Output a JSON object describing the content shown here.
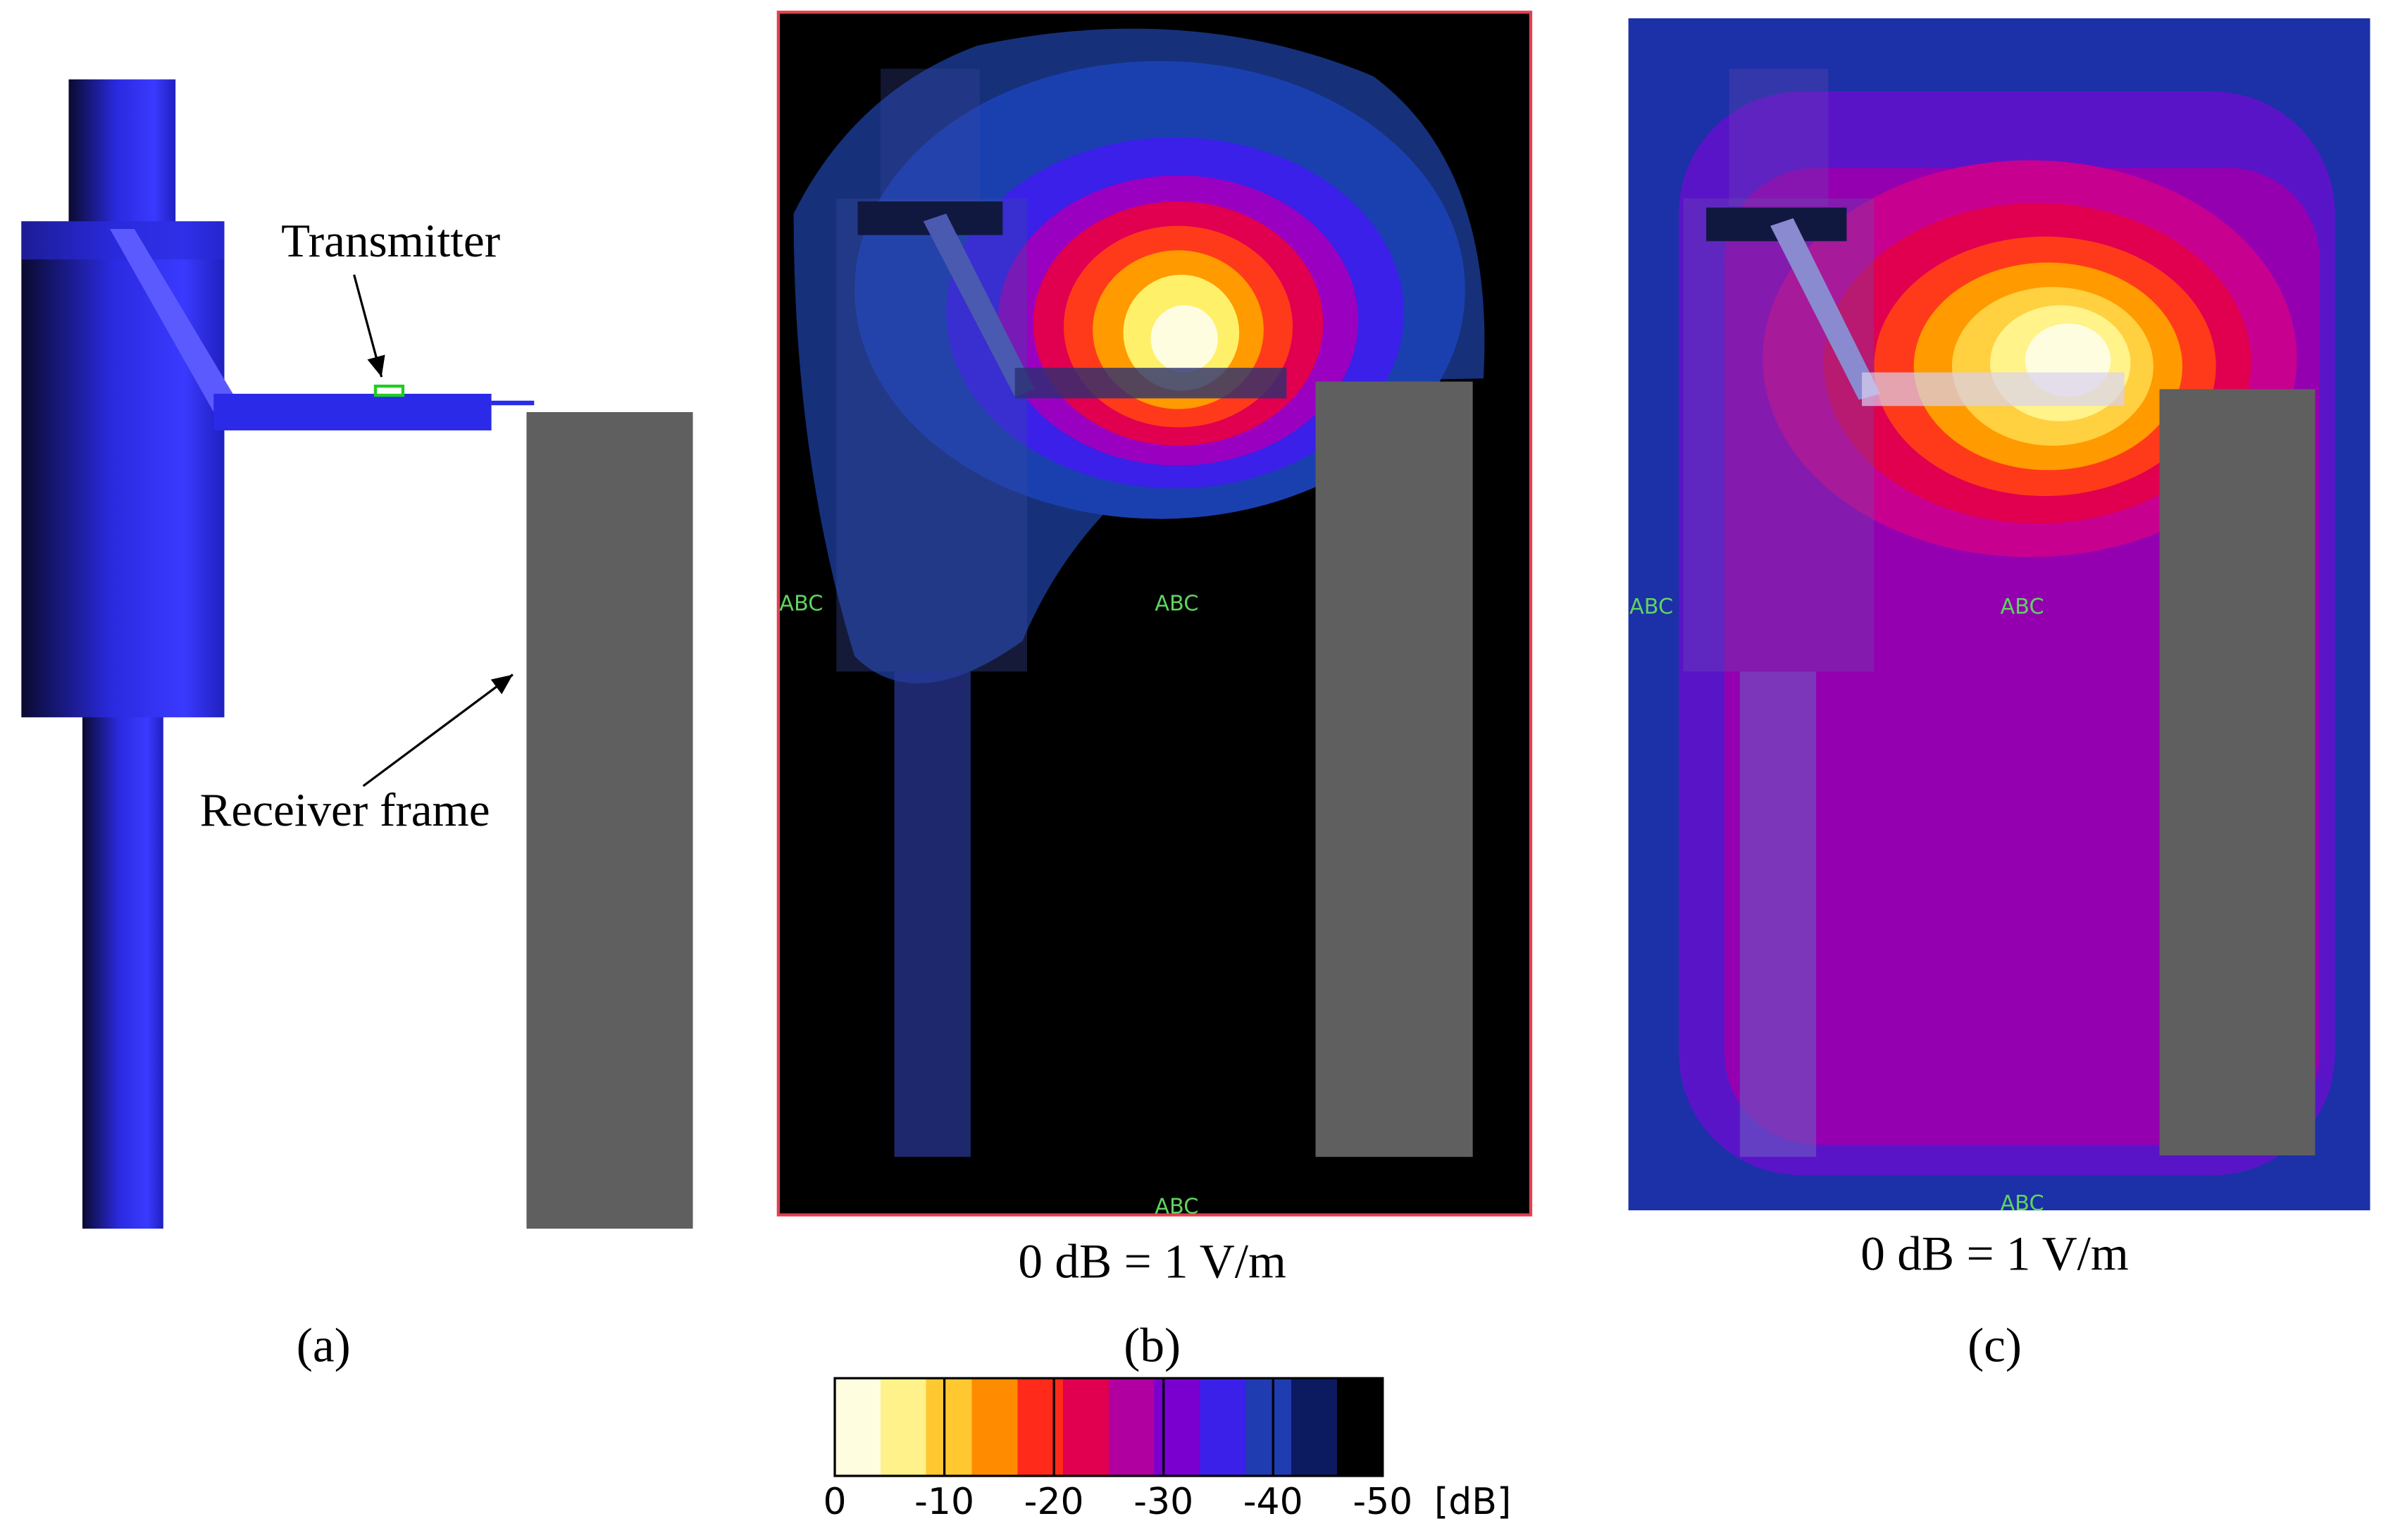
{
  "panel_a": {
    "transmitter_label": "Transmitter",
    "receiver_label": "Receiver frame",
    "caption": "(a)"
  },
  "panel_b": {
    "markers": [
      "ABC",
      "ABC",
      "ABC"
    ],
    "reference": "0 dB = 1 V/m",
    "caption": "(b)"
  },
  "panel_c": {
    "markers": [
      "ABC",
      "ABC",
      "ABC"
    ],
    "reference": "0 dB = 1 V/m",
    "caption": "(c)"
  },
  "colorbar": {
    "lim": [
      0,
      -50
    ],
    "ticks": [
      0,
      -10,
      -20,
      -30,
      -40,
      -50
    ],
    "unit": "[dB]",
    "colors": [
      "#fffde0",
      "#fff28a",
      "#ffc830",
      "#ff8c00",
      "#ff2a1a",
      "#e0004f",
      "#b000a0",
      "#7a00d0",
      "#3a20e8",
      "#1f3cb0",
      "#0c1a60",
      "#000000"
    ]
  }
}
